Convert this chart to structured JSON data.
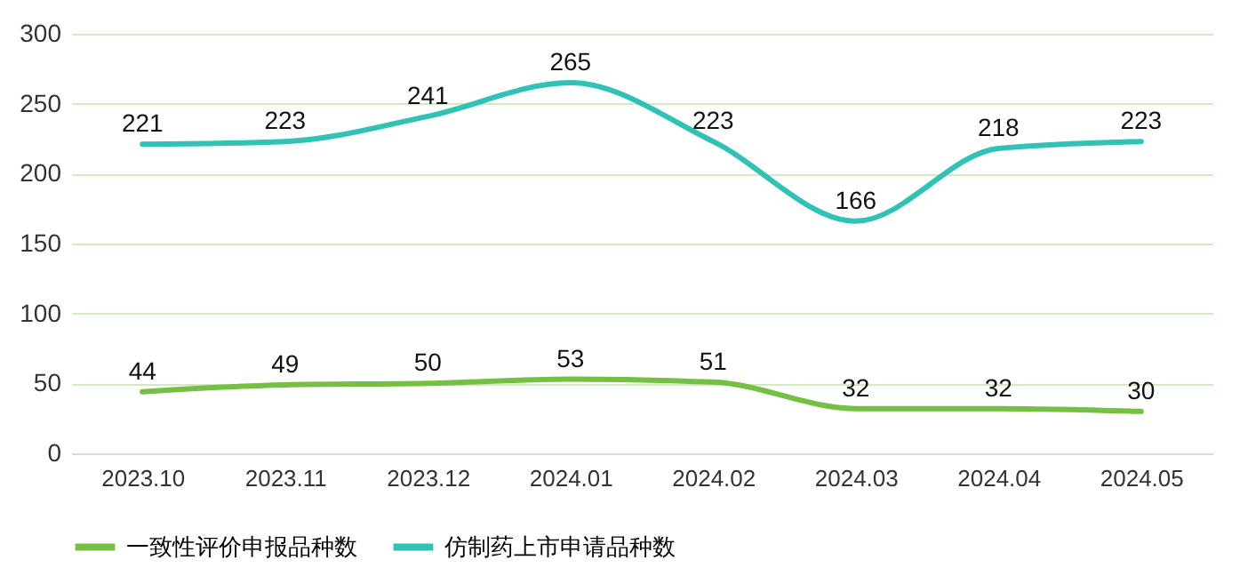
{
  "chart_data": {
    "type": "line",
    "categories": [
      "2023.10",
      "2023.11",
      "2023.12",
      "2024.01",
      "2024.02",
      "2024.03",
      "2024.04",
      "2024.05"
    ],
    "series": [
      {
        "name": "一致性评价申报品种数",
        "color": "#74bf44",
        "values": [
          44,
          49,
          50,
          53,
          51,
          32,
          32,
          30
        ]
      },
      {
        "name": "仿制药上市申请品种数",
        "color": "#30c2b4",
        "values": [
          221,
          223,
          241,
          265,
          223,
          166,
          218,
          223
        ]
      }
    ],
    "ylim": [
      0,
      300
    ],
    "yticks": [
      0,
      50,
      100,
      150,
      200,
      250,
      300
    ],
    "grid": "y",
    "legend": "bottom",
    "data_labels": true,
    "marker": "none",
    "line_style": "solid"
  }
}
